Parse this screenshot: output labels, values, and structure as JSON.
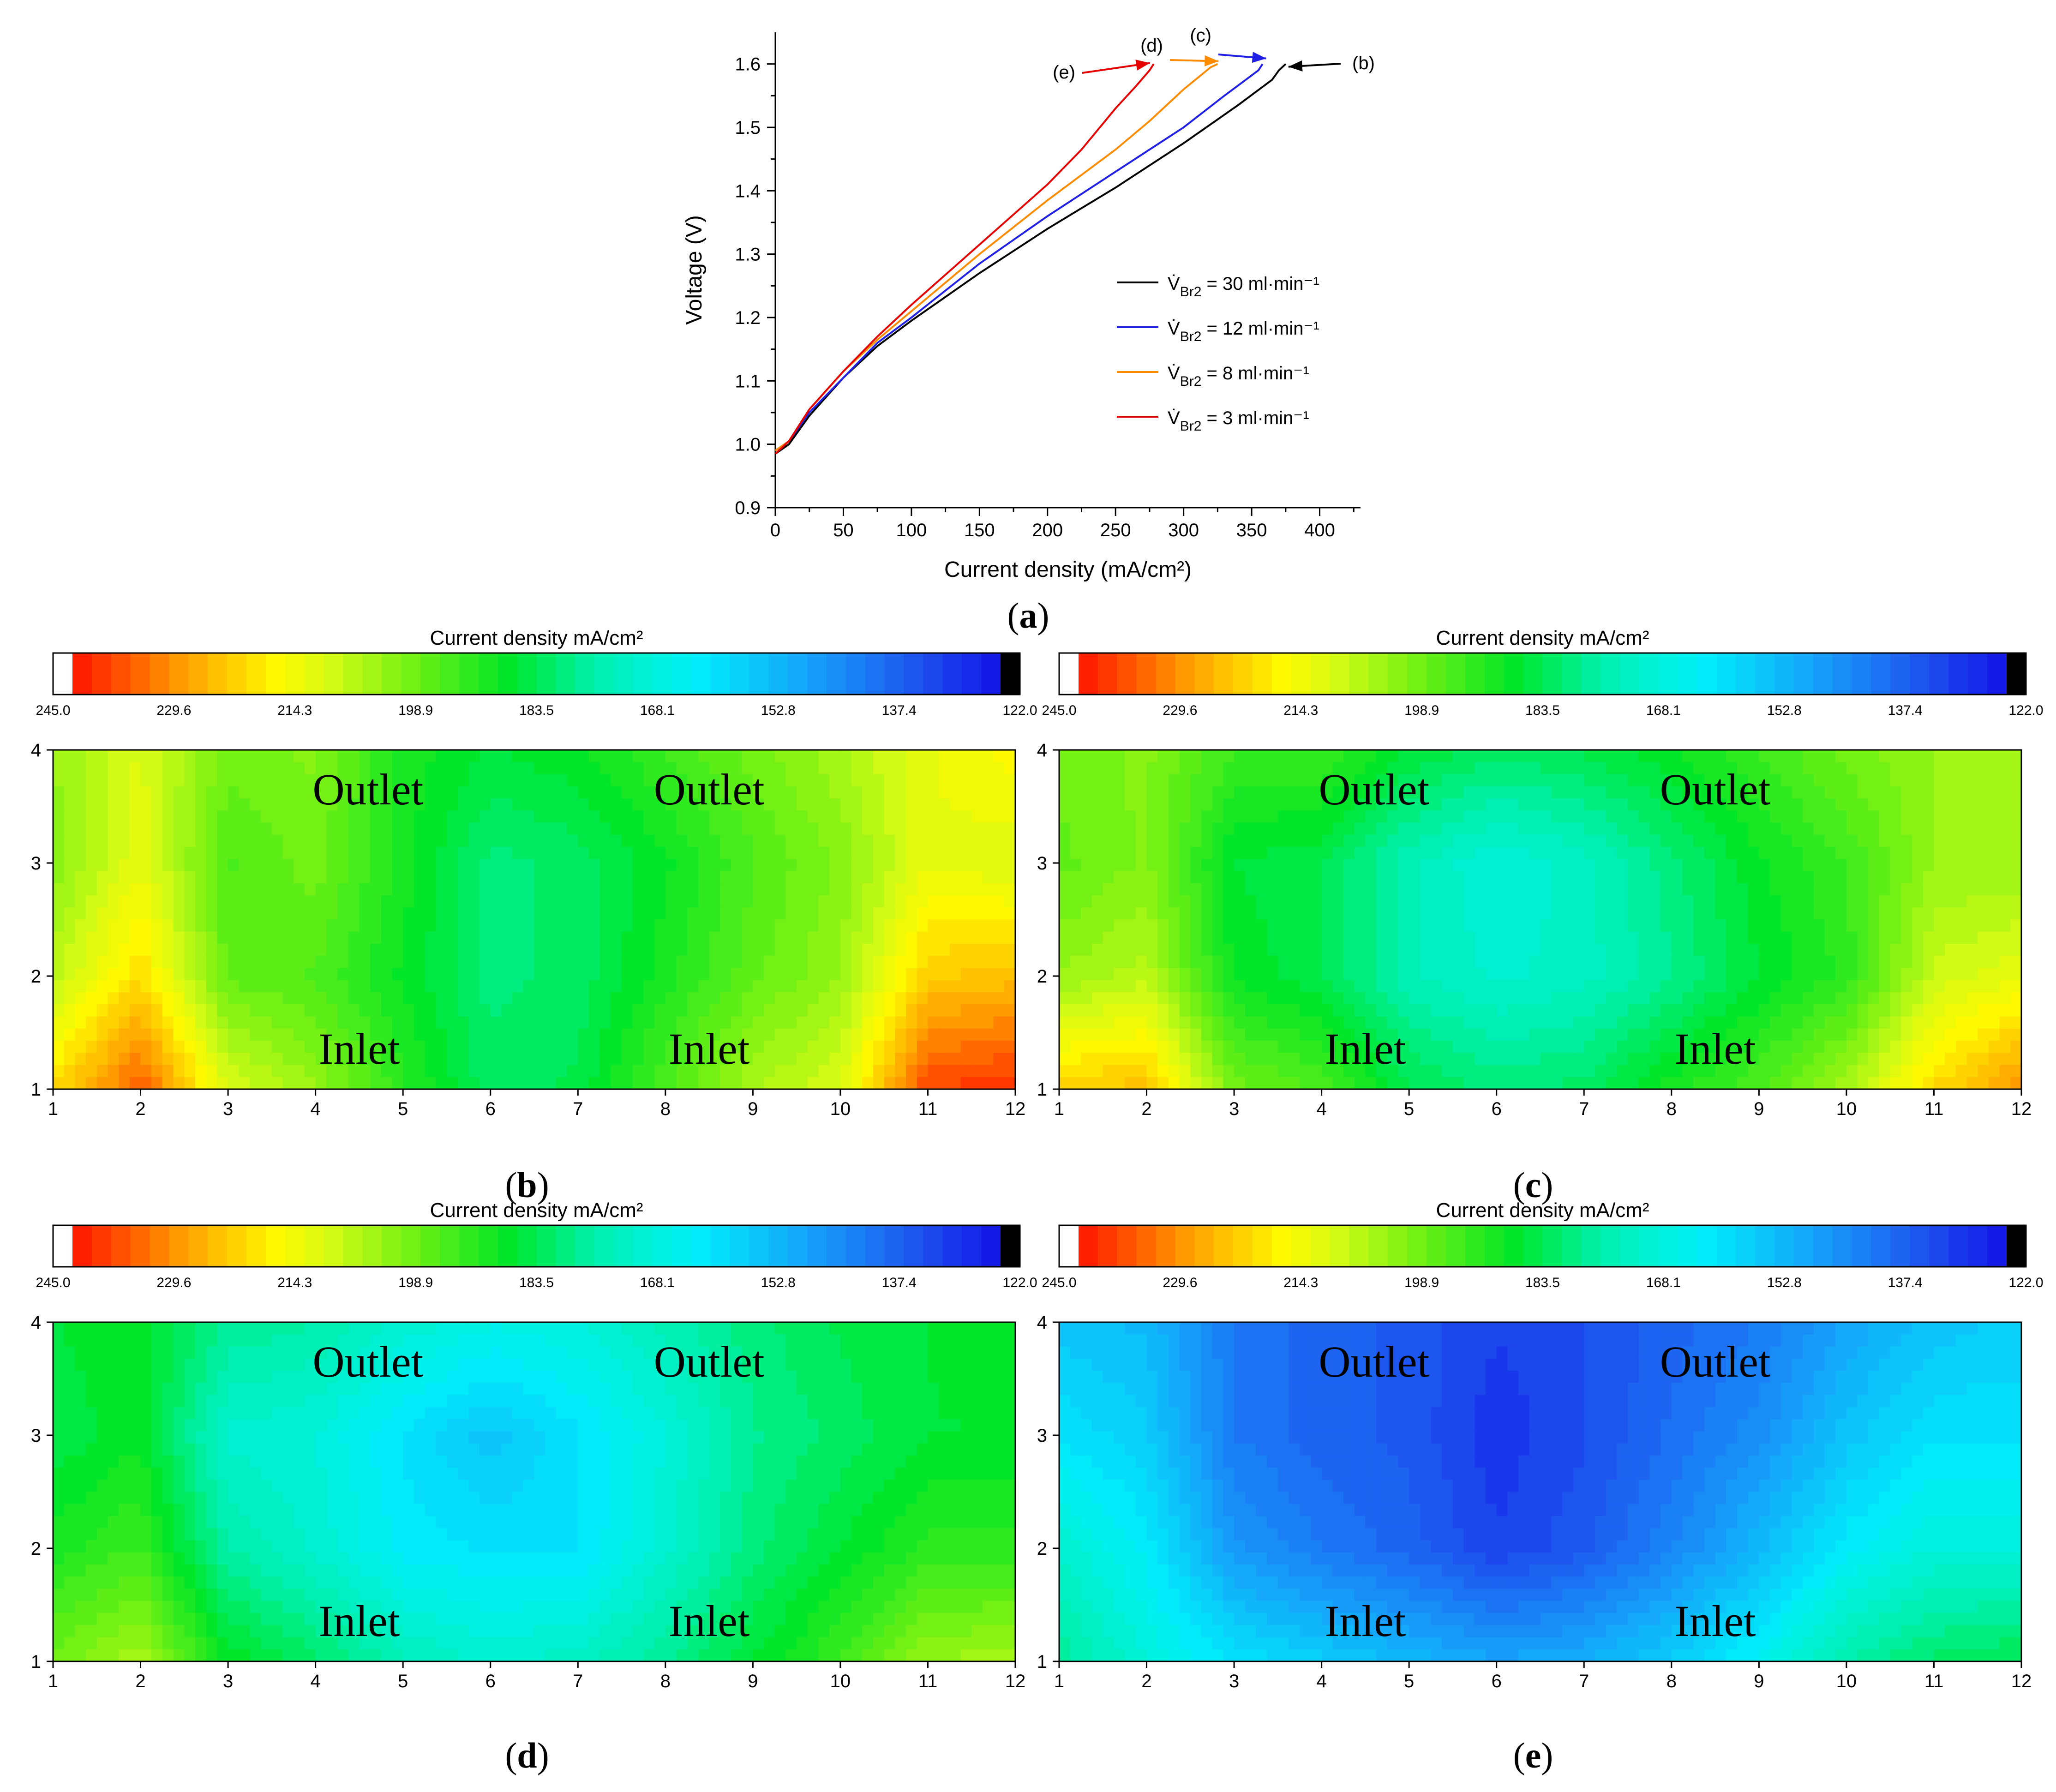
{
  "chart_data": [
    {
      "panel": "a",
      "type": "line",
      "xlabel": "Current density (mA/cm²)",
      "ylabel": "Voltage (V)",
      "xlim": [
        0,
        430
      ],
      "ylim": [
        0.9,
        1.65
      ],
      "xticks": [
        0,
        50,
        100,
        150,
        200,
        250,
        300,
        350,
        400
      ],
      "yticks": [
        0.9,
        1.0,
        1.1,
        1.2,
        1.3,
        1.4,
        1.5,
        1.6
      ],
      "series": [
        {
          "name": "V̇Br₂ = 30 ml·min⁻¹",
          "legend_main": "V̇",
          "legend_sub": "Br2",
          "legend_rest": "= 30 ml·min⁻¹",
          "color": "#000000",
          "tag": "(b)",
          "x": [
            0,
            10,
            25,
            50,
            75,
            100,
            150,
            200,
            250,
            300,
            340,
            365,
            370,
            375
          ],
          "y": [
            0.985,
            1.0,
            1.045,
            1.105,
            1.155,
            1.195,
            1.27,
            1.34,
            1.405,
            1.475,
            1.535,
            1.575,
            1.59,
            1.6
          ]
        },
        {
          "name": "V̇Br₂ = 12 ml·min⁻¹",
          "legend_main": "V̇",
          "legend_sub": "Br2",
          "legend_rest": "= 12 ml·min⁻¹",
          "color": "#1f1fe6",
          "tag": "(c)",
          "x": [
            0,
            10,
            25,
            50,
            75,
            100,
            150,
            200,
            250,
            300,
            330,
            355,
            358
          ],
          "y": [
            0.99,
            1.005,
            1.05,
            1.105,
            1.16,
            1.2,
            1.285,
            1.36,
            1.43,
            1.5,
            1.55,
            1.59,
            1.6
          ]
        },
        {
          "name": "V̇Br₂ = 8 ml·min⁻¹",
          "legend_main": "V̇",
          "legend_sub": "Br2",
          "legend_rest": "= 8 ml·min⁻¹",
          "color": "#ff8c00",
          "tag": "(d)",
          "x": [
            0,
            10,
            25,
            50,
            75,
            100,
            150,
            200,
            250,
            275,
            300,
            320,
            325
          ],
          "y": [
            0.99,
            1.005,
            1.055,
            1.115,
            1.165,
            1.21,
            1.3,
            1.385,
            1.465,
            1.51,
            1.56,
            1.595,
            1.6
          ]
        },
        {
          "name": "V̇Br₂ = 3 ml·min⁻¹",
          "legend_main": "V̇",
          "legend_sub": "Br2",
          "legend_rest": "= 3 ml·min⁻¹",
          "color": "#e60000",
          "tag": "(e)",
          "x": [
            0,
            10,
            25,
            50,
            75,
            100,
            150,
            200,
            225,
            250,
            265,
            275,
            278
          ],
          "y": [
            0.985,
            1.005,
            1.055,
            1.115,
            1.17,
            1.22,
            1.315,
            1.41,
            1.465,
            1.53,
            1.565,
            1.59,
            1.6
          ]
        }
      ],
      "annotations": [
        "(b)",
        "(c)",
        "(d)",
        "(e)"
      ]
    },
    {
      "panel": "b",
      "type": "heatmap",
      "colorbar_title": "Current density mA/cm²",
      "x_ticks": [
        1,
        2,
        3,
        4,
        5,
        6,
        7,
        8,
        9,
        10,
        11,
        12
      ],
      "y_ticks": [
        1,
        2,
        3,
        4
      ],
      "labels": {
        "outlet": "Outlet",
        "inlet": "Inlet"
      },
      "z_rows_y1_to_y4": [
        [
          222,
          238,
          212,
          204,
          192,
          182,
          184,
          196,
          206,
          212,
          240,
          242
        ],
        [
          208,
          222,
          198,
          196,
          188,
          180,
          182,
          190,
          198,
          204,
          224,
          226
        ],
        [
          202,
          214,
          196,
          200,
          190,
          180,
          182,
          188,
          196,
          202,
          214,
          212
        ],
        [
          204,
          212,
          200,
          202,
          190,
          186,
          188,
          194,
          200,
          206,
          214,
          218
        ]
      ]
    },
    {
      "panel": "c",
      "type": "heatmap",
      "colorbar_title": "Current density mA/cm²",
      "x_ticks": [
        1,
        2,
        3,
        4,
        5,
        6,
        7,
        8,
        9,
        10,
        11,
        12
      ],
      "y_ticks": [
        1,
        2,
        3,
        4
      ],
      "labels": {
        "outlet": "Outlet",
        "inlet": "Inlet"
      },
      "z_rows_y1_to_y4": [
        [
          224,
          226,
          200,
          196,
          184,
          180,
          182,
          190,
          196,
          206,
          222,
          232
        ],
        [
          204,
          208,
          188,
          184,
          174,
          170,
          172,
          178,
          186,
          192,
          210,
          214
        ],
        [
          198,
          202,
          186,
          184,
          174,
          168,
          172,
          180,
          188,
          194,
          204,
          204
        ],
        [
          200,
          202,
          194,
          194,
          186,
          182,
          184,
          188,
          194,
          200,
          204,
          206
        ]
      ]
    },
    {
      "panel": "d",
      "type": "heatmap",
      "colorbar_title": "Current density mA/cm²",
      "x_ticks": [
        1,
        2,
        3,
        4,
        5,
        6,
        7,
        8,
        9,
        10,
        11,
        12
      ],
      "y_ticks": [
        1,
        2,
        3,
        4
      ],
      "labels": {
        "outlet": "Outlet",
        "inlet": "Inlet"
      },
      "z_rows_y1_to_y4": [
        [
          200,
          206,
          188,
          182,
          174,
          170,
          172,
          178,
          186,
          194,
          204,
          206
        ],
        [
          190,
          194,
          176,
          170,
          162,
          160,
          160,
          170,
          180,
          186,
          192,
          192
        ],
        [
          184,
          188,
          170,
          168,
          160,
          154,
          160,
          168,
          178,
          182,
          186,
          186
        ],
        [
          186,
          188,
          178,
          176,
          170,
          166,
          168,
          174,
          180,
          184,
          186,
          188
        ]
      ]
    },
    {
      "panel": "e",
      "type": "heatmap",
      "colorbar_title": "Current density mA/cm²",
      "x_ticks": [
        1,
        2,
        3,
        4,
        5,
        6,
        7,
        8,
        9,
        10,
        11,
        12
      ],
      "y_ticks": [
        1,
        2,
        3,
        4
      ],
      "labels": {
        "outlet": "Outlet",
        "inlet": "Inlet"
      },
      "z_rows_y1_to_y4": [
        [
          178,
          168,
          160,
          156,
          152,
          148,
          150,
          156,
          164,
          176,
          182,
          184
        ],
        [
          170,
          162,
          146,
          140,
          136,
          130,
          134,
          142,
          152,
          162,
          168,
          168
        ],
        [
          160,
          156,
          140,
          136,
          134,
          128,
          132,
          138,
          144,
          154,
          160,
          160
        ],
        [
          154,
          152,
          140,
          136,
          134,
          130,
          132,
          136,
          140,
          148,
          154,
          156
        ]
      ]
    }
  ],
  "colorbar_ticks": [
    "245.0",
    "229.6",
    "214.3",
    "198.9",
    "183.5",
    "168.1",
    "152.8",
    "137.4",
    "122.0"
  ],
  "colorbar_range": [
    122.0,
    245.0
  ],
  "colorbar_levels": 48,
  "panel_labels": {
    "a": "a",
    "b": "b",
    "c": "c",
    "d": "d",
    "e": "e"
  }
}
